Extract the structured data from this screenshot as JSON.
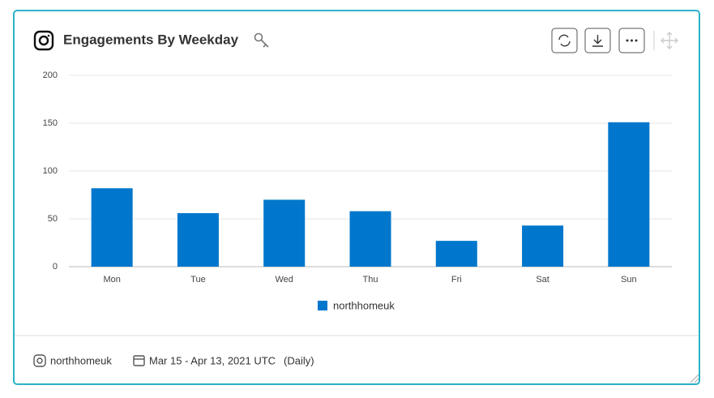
{
  "header": {
    "title": "Engagements By Weekday"
  },
  "chart_data": {
    "type": "bar",
    "categories": [
      "Mon",
      "Tue",
      "Wed",
      "Thu",
      "Fri",
      "Sat",
      "Sun"
    ],
    "series": [
      {
        "name": "northhomeuk",
        "color": "#0077cc",
        "values": [
          82,
          56,
          70,
          58,
          27,
          43,
          151
        ]
      }
    ],
    "ylim": [
      0,
      200
    ],
    "yticks": [
      0,
      50,
      100,
      150,
      200
    ],
    "grid": true,
    "legend": "bottom"
  },
  "footer": {
    "account": "northhomeuk",
    "date_range": "Mar 15 - Apr 13, 2021 UTC",
    "granularity": "(Daily)"
  }
}
